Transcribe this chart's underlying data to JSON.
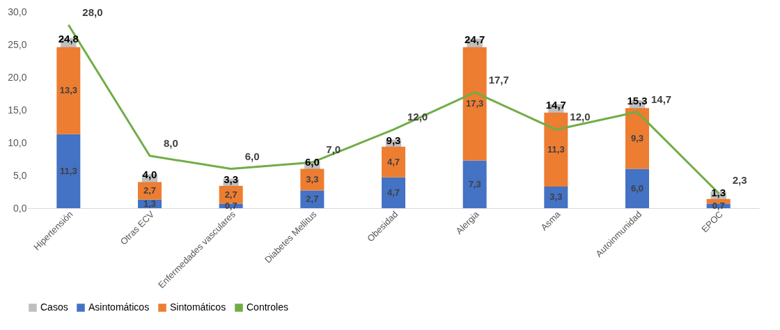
{
  "chart_data": {
    "type": "bar",
    "stacked": true,
    "legend": "bottom",
    "grid": false,
    "categories": [
      "Hipertensión",
      "Otras ECV",
      "Enfermedades vasculares",
      "Diabetes Mellitus",
      "Obesidad",
      "Alergia",
      "Asma",
      "Autoinmunidad",
      "EPOC"
    ],
    "ylim": [
      0,
      30
    ],
    "yticks": [
      {
        "value": 0,
        "label": "0,0"
      },
      {
        "value": 5,
        "label": "5,0"
      },
      {
        "value": 10,
        "label": "10,0"
      },
      {
        "value": 15,
        "label": "15,0"
      },
      {
        "value": 20,
        "label": "20,0"
      },
      {
        "value": 25,
        "label": "25,0"
      },
      {
        "value": 30,
        "label": "30,0"
      }
    ],
    "series": [
      {
        "name": "Casos",
        "type": "scatter",
        "marker": "square",
        "color": "#bfbfbf",
        "values": [
          24.8,
          4.0,
          3.3,
          6.0,
          9.3,
          24.7,
          14.7,
          15.3,
          1.3
        ],
        "value_labels": [
          "24,8",
          "4,0",
          "3,3",
          "6,0",
          "9,3",
          "24,7",
          "14,7",
          "15,3",
          "1,3"
        ]
      },
      {
        "name": "Asintomáticos",
        "color": "#4472c4",
        "values": [
          11.3,
          1.3,
          0.7,
          2.7,
          4.7,
          7.3,
          3.3,
          6.0,
          0.7
        ],
        "value_labels": [
          "11,3",
          "1,3",
          "0,7",
          "2,7",
          "4,7",
          "7,3",
          "3,3",
          "6,0",
          "0,7"
        ]
      },
      {
        "name": "Sintomáticos",
        "color": "#ed7d31",
        "values": [
          13.3,
          2.7,
          2.7,
          3.3,
          4.7,
          17.3,
          11.3,
          9.3,
          0.7
        ],
        "value_labels": [
          "13,3",
          "2,7",
          "2,7",
          "3,3",
          "4,7",
          "17,3",
          "11,3",
          "9,3",
          null
        ]
      },
      {
        "name": "Controles",
        "type": "line",
        "marker": "none",
        "line_style": "solid",
        "color": "#70ad47",
        "values": [
          28.0,
          8.0,
          6.0,
          7.0,
          12.0,
          17.7,
          12.0,
          14.7,
          2.3
        ],
        "value_labels": [
          "28,0",
          "8,0",
          "6,0",
          "7,0",
          "12,0",
          "17,7",
          "12,0",
          "14,7",
          "2,3"
        ]
      }
    ]
  }
}
